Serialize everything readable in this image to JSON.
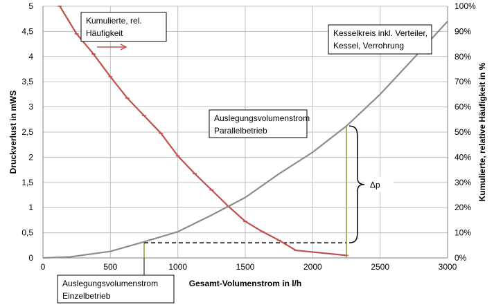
{
  "chart_data": {
    "type": "line",
    "xlabel": "Gesamt-Volumenstrom in l/h",
    "ylabel": "Druckverlust in mWS",
    "y2label": "Kumulierte, relative Häufigkeit in %",
    "xlim": [
      0,
      3000
    ],
    "ylim": [
      0,
      5
    ],
    "y2lim": [
      0,
      100
    ],
    "grid": true,
    "x_ticks": [
      "0",
      "500",
      "1000",
      "1500",
      "2000",
      "2500",
      "3000"
    ],
    "y_ticks": [
      "0",
      "0,5",
      "1",
      "1,5",
      "2",
      "2,5",
      "3",
      "3,5",
      "4",
      "4,5",
      "5"
    ],
    "y2_ticks": [
      "0%",
      "10%",
      "20%",
      "30%",
      "40%",
      "50%",
      "60%",
      "70%",
      "80%",
      "90%",
      "100%"
    ],
    "series": [
      {
        "name": "Kumulierte, rel. Häufigkeit",
        "axis": "right",
        "color": "#c0504d",
        "markers": true,
        "x": [
          125,
          250,
          375,
          500,
          625,
          750,
          875,
          1000,
          1125,
          1250,
          1375,
          1500,
          1625,
          1750,
          1875,
          2250
        ],
        "y": [
          100,
          89,
          81,
          72,
          63.5,
          56.5,
          49.5,
          40.5,
          33.5,
          27,
          20.5,
          14.5,
          10.5,
          7,
          3,
          1
        ]
      },
      {
        "name": "Kesselkreis inkl. Verteiler, Kessel, Verrohrung",
        "axis": "left",
        "color": "#8c8c8c",
        "markers": false,
        "x": [
          0,
          200,
          500,
          750,
          1000,
          1250,
          1500,
          1750,
          2000,
          2250,
          2500,
          2750,
          3000
        ],
        "y": [
          0,
          0.02,
          0.13,
          0.32,
          0.52,
          0.85,
          1.2,
          1.67,
          2.1,
          2.62,
          3.25,
          3.97,
          4.7
        ]
      }
    ],
    "annotations": {
      "left_box": "Kumulierte, rel. Häufigkeit",
      "right_box": "Kesselkreis inkl. Verteiler, Kessel, Verrohrung",
      "parallel": "Auslegungsvolumenstrom Parallelbetrieb",
      "single": "Auslegungsvolumenstrom Einzelbetrieb",
      "delta": "Δp"
    },
    "design_points": {
      "single_x": 750,
      "single_y": 0.3,
      "parallel_x": 2250,
      "parallel_y": 2.62
    }
  },
  "colors": {
    "red": "#c0504d",
    "gray": "#8c8c8c",
    "green": "#9bbb59",
    "grid": "#bfbfbf"
  },
  "labels": {
    "left_box_line1": "Kumulierte, rel.",
    "left_box_line2": "Häufigkeit",
    "right_box_line1": "Kesselkreis inkl. Verteiler,",
    "right_box_line2": "Kessel, Verrohrung",
    "parallel_line1": "Auslegungsvolumenstrom",
    "parallel_line2": "Parallelbetrieb",
    "single_line1": "Auslegungsvolumenstrom",
    "single_line2": "Einzelbetrieb",
    "delta": "Δp"
  }
}
